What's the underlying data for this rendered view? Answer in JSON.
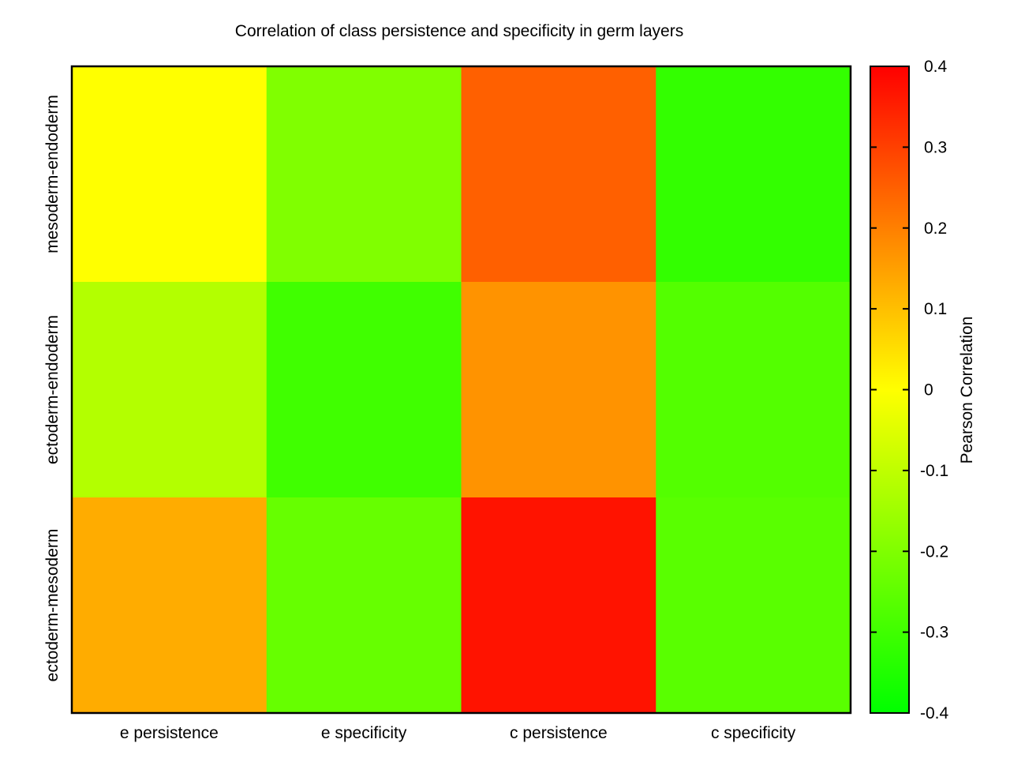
{
  "chart_data": {
    "type": "heatmap",
    "title": "Correlation of class persistence and specificity in germ layers",
    "x_categories": [
      "e persistence",
      "e specificity",
      "c persistence",
      "c specificity"
    ],
    "y_categories": [
      "mesoderm-endoderm",
      "ectoderm-endoderm",
      "ectoderm-mesoderm"
    ],
    "values": [
      [
        0.0,
        -0.2,
        0.25,
        -0.32
      ],
      [
        -0.12,
        -0.3,
        0.17,
        -0.27
      ],
      [
        0.13,
        -0.24,
        0.37,
        -0.26
      ]
    ],
    "colorbar": {
      "label": "Pearson Correlation",
      "range": [
        -0.4,
        0.4
      ],
      "tick_values": [
        -0.4,
        -0.3,
        -0.2,
        -0.1,
        0,
        0.1,
        0.2,
        0.3,
        0.4
      ],
      "tick_labels": [
        "-0.4",
        "-0.3",
        "-0.2",
        "-0.1",
        "0",
        "0.1",
        "0.2",
        "0.3",
        "0.4"
      ],
      "palette": [
        {
          "value": -0.4,
          "color": "#00ff00"
        },
        {
          "value": 0.0,
          "color": "#ffff00"
        },
        {
          "value": 0.4,
          "color": "#ff0000"
        }
      ]
    }
  }
}
